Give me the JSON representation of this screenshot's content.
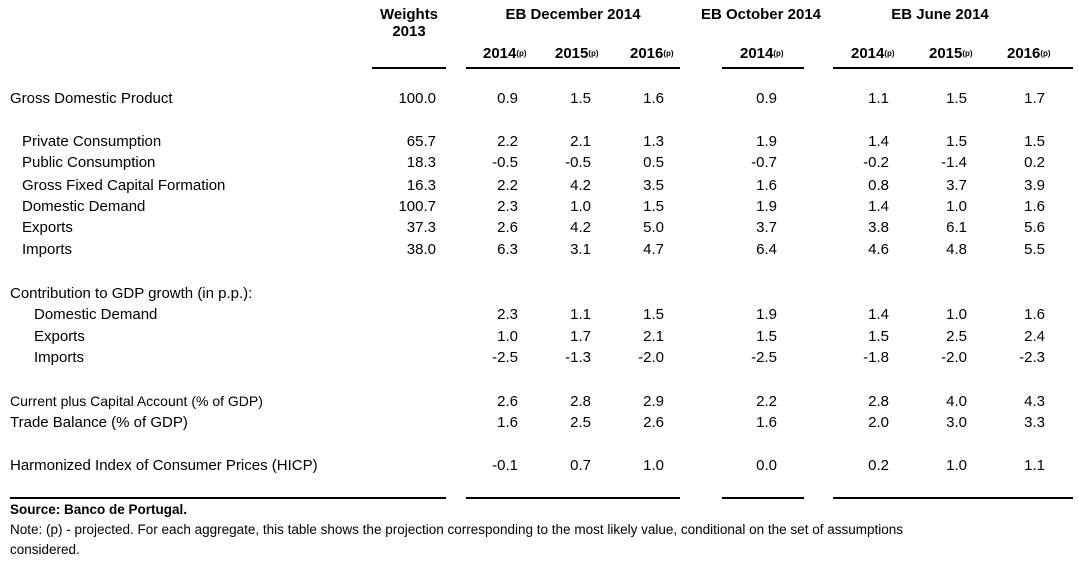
{
  "headers": {
    "weights": "Weights",
    "weights_year": "2013",
    "eb_dec": "EB December 2014",
    "eb_oct": "EB October 2014",
    "eb_jun": "EB June 2014",
    "years": [
      "2014",
      "2015",
      "2016",
      "2014",
      "2014",
      "2015",
      "2016"
    ],
    "proj_mark": "(p)"
  },
  "rows": [
    {
      "label": "Gross Domestic Product",
      "indent": 0,
      "weight": "100.0",
      "values": [
        "0.9",
        "1.5",
        "1.6",
        "0.9",
        "1.1",
        "1.5",
        "1.7"
      ]
    },
    {
      "label": "Private Consumption",
      "indent": 1,
      "weight": "65.7",
      "values": [
        "2.2",
        "2.1",
        "1.3",
        "1.9",
        "1.4",
        "1.5",
        "1.5"
      ]
    },
    {
      "label": "Public Consumption",
      "indent": 1,
      "weight": "18.3",
      "values": [
        "-0.5",
        "-0.5",
        "0.5",
        "-0.7",
        "-0.2",
        "-1.4",
        "0.2"
      ]
    },
    {
      "label": "Gross Fixed Capital Formation",
      "indent": 1,
      "weight": "16.3",
      "values": [
        "2.2",
        "4.2",
        "3.5",
        "1.6",
        "0.8",
        "3.7",
        "3.9"
      ]
    },
    {
      "label": "Domestic Demand",
      "indent": 1,
      "weight": "100.7",
      "values": [
        "2.3",
        "1.0",
        "1.5",
        "1.9",
        "1.4",
        "1.0",
        "1.6"
      ]
    },
    {
      "label": "Exports",
      "indent": 1,
      "weight": "37.3",
      "values": [
        "2.6",
        "4.2",
        "5.0",
        "3.7",
        "3.8",
        "6.1",
        "5.6"
      ]
    },
    {
      "label": "Imports",
      "indent": 1,
      "weight": "38.0",
      "values": [
        "6.3",
        "3.1",
        "4.7",
        "6.4",
        "4.6",
        "4.8",
        "5.5"
      ]
    },
    {
      "label": "Contribution to GDP growth (in p.p.):",
      "indent": 0,
      "weight": "",
      "values": [
        "",
        "",
        "",
        "",
        "",
        "",
        ""
      ]
    },
    {
      "label": "Domestic Demand",
      "indent": 2,
      "weight": "",
      "values": [
        "2.3",
        "1.1",
        "1.5",
        "1.9",
        "1.4",
        "1.0",
        "1.6"
      ]
    },
    {
      "label": "Exports",
      "indent": 2,
      "weight": "",
      "values": [
        "1.0",
        "1.7",
        "2.1",
        "1.5",
        "1.5",
        "2.5",
        "2.4"
      ]
    },
    {
      "label": "Imports",
      "indent": 2,
      "weight": "",
      "values": [
        "-2.5",
        "-1.3",
        "-2.0",
        "-2.5",
        "-1.8",
        "-2.0",
        "-2.3"
      ]
    },
    {
      "label": "Current plus Capital Account (% of GDP)",
      "indent": 0,
      "small": true,
      "weight": "",
      "values": [
        "2.6",
        "2.8",
        "2.9",
        "2.2",
        "2.8",
        "4.0",
        "4.3"
      ]
    },
    {
      "label": "Trade Balance (% of GDP)",
      "indent": 0,
      "weight": "",
      "values": [
        "1.6",
        "2.5",
        "2.6",
        "1.6",
        "2.0",
        "3.0",
        "3.3"
      ]
    },
    {
      "label": "Harmonized Index of Consumer Prices (HICP)",
      "indent": 0,
      "weight": "",
      "values": [
        "-0.1",
        "0.7",
        "1.0",
        "0.0",
        "0.2",
        "1.0",
        "1.1"
      ]
    }
  ],
  "footer": {
    "source": "Source: Banco de Portugal.",
    "note_line1": "Note: (p) - projected. For each aggregate, this table shows the projection corresponding to the most likely value, conditional on the set of assumptions",
    "note_line2": "considered."
  }
}
